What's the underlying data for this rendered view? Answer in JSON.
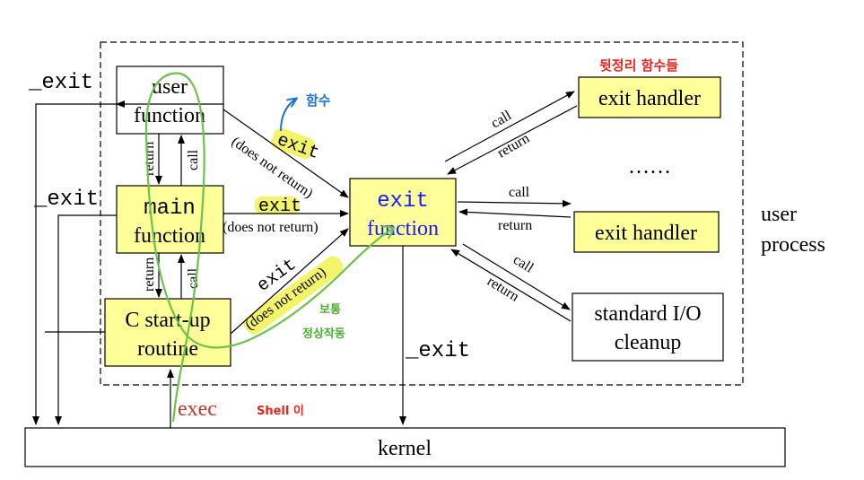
{
  "diagram": {
    "boxes": {
      "user_function": [
        "user",
        "function"
      ],
      "main_function": [
        "main",
        "function"
      ],
      "c_startup": [
        "C start-up",
        "routine"
      ],
      "exit_function": [
        "exit",
        "function"
      ],
      "exit_handler_top": "exit handler",
      "exit_handler_mid": "exit handler",
      "stdio_cleanup": [
        "standard I/O",
        "cleanup"
      ],
      "kernel": "kernel",
      "user_process": [
        "user",
        "process"
      ]
    },
    "labels": {
      "exit_left_top": "_exit",
      "exit_left_mid": "_exit",
      "exit_bottom": "_exit",
      "exec": "exec",
      "return": "return",
      "call": "call",
      "exit": "exit",
      "does_not_return_1": "(does not return)",
      "does_not_return_2": "(does not return)",
      "does_not_return_3": "(does not return)",
      "ellipsis": "……"
    },
    "annotations": {
      "cleanup_functions": "뒷정리 함수들",
      "function_note": "함수",
      "normal_note": [
        "보통",
        "정상작동"
      ],
      "shell_note": "Shell 이"
    },
    "colors": {
      "box_yellow": "#ffff99",
      "exit_blue": "#1a1aff",
      "highlight_yellow": "#f4f46a",
      "trace_green": "#6cc24a",
      "note_red": "#e8231e",
      "note_blue": "#1e6fe0",
      "note_green": "#4caf32",
      "exec_red": "#c0392b"
    }
  }
}
